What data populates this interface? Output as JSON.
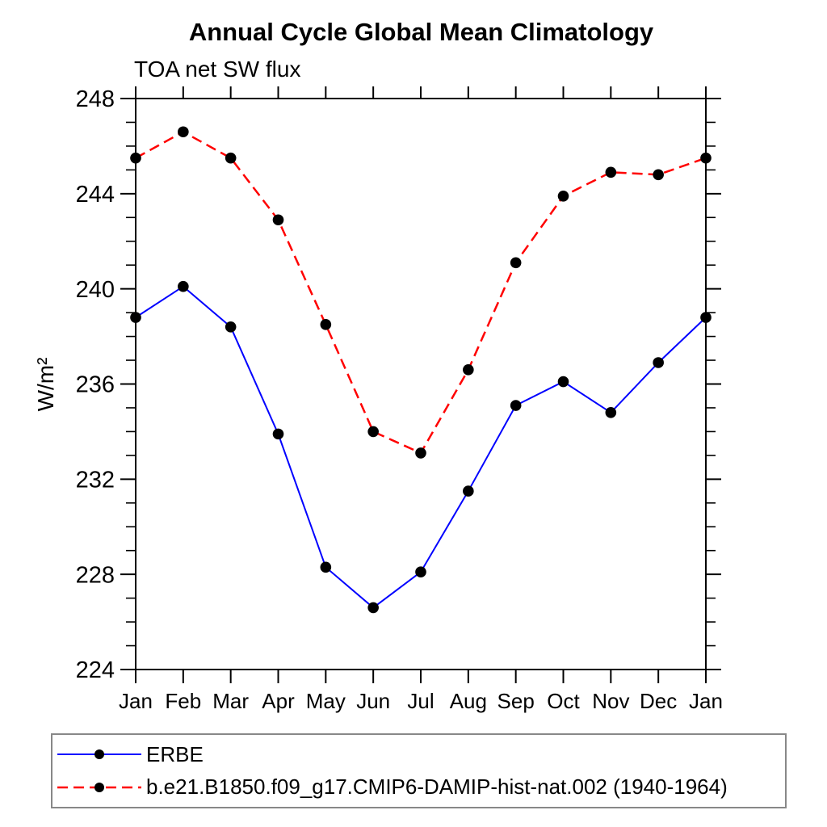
{
  "page_background": "#ffffff",
  "chart_data": {
    "type": "line",
    "title": "Annual Cycle Global Mean Climatology",
    "subtitle": "TOA net SW flux",
    "ylabel": "W/m²",
    "xlabel": "",
    "categories": [
      "Jan",
      "Feb",
      "Mar",
      "Apr",
      "May",
      "Jun",
      "Jul",
      "Aug",
      "Sep",
      "Oct",
      "Nov",
      "Dec",
      "Jan"
    ],
    "ylim": [
      224,
      248
    ],
    "yticks_major": [
      224,
      228,
      232,
      236,
      240,
      244,
      248
    ],
    "ytick_minor_step": 1,
    "grid": false,
    "frame": "full-box-outward-ticks",
    "legend_position": "bottom-left-box",
    "axis_color": "#000000",
    "marker": {
      "shape": "filled-circle",
      "color": "#000000",
      "radius": 6.8
    },
    "series": [
      {
        "name": "ERBE",
        "color": "#0000ff",
        "line_style": "solid",
        "line_width": 2,
        "values": [
          238.8,
          240.1,
          238.4,
          233.9,
          228.3,
          226.6,
          228.1,
          231.5,
          235.1,
          236.1,
          234.8,
          236.9,
          238.8
        ]
      },
      {
        "name": "b.e21.B1850.f09_g17.CMIP6-DAMIP-hist-nat.002 (1940-1964)",
        "color": "#ff0000",
        "line_style": "dashed",
        "line_width": 2.5,
        "values": [
          245.5,
          246.6,
          245.5,
          242.9,
          238.5,
          234.0,
          233.1,
          236.6,
          241.1,
          243.9,
          244.9,
          244.8,
          245.5
        ]
      }
    ]
  }
}
